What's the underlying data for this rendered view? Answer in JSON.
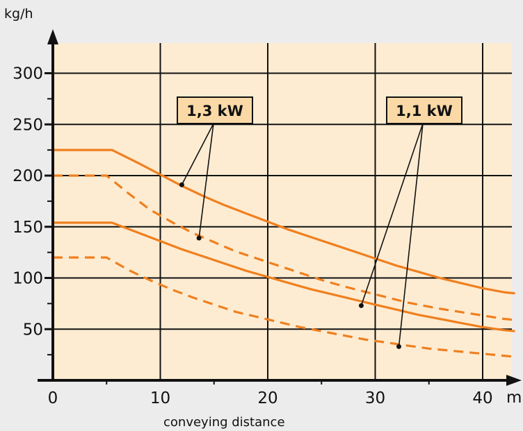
{
  "chart_data": {
    "type": "line",
    "title": "",
    "ylabel": "kg/h",
    "xunit": "m",
    "xlabel": "conveying distance",
    "xlim": [
      0,
      43
    ],
    "ylim": [
      0,
      310
    ],
    "xticks": [
      0,
      10,
      20,
      30,
      40
    ],
    "yticks": [
      50,
      100,
      150,
      200,
      250,
      300
    ],
    "grid": true,
    "colors": {
      "line": "#f07f1e",
      "plot_bg": "#fdecd2",
      "grid": "#111111",
      "callout_bg": "#fbd9a6"
    },
    "series": [
      {
        "style": "solid",
        "power": "1,3 kW",
        "x": [
          0,
          5.5,
          8,
          10,
          12,
          14,
          16,
          18,
          20,
          22,
          24,
          26,
          28,
          30,
          32,
          34,
          36,
          38,
          40,
          42,
          43
        ],
        "y": [
          225,
          225,
          212,
          201,
          190,
          180,
          171,
          163,
          155,
          147,
          140,
          133,
          126,
          119,
          112,
          106,
          100,
          95,
          90,
          86,
          85
        ]
      },
      {
        "style": "dashed",
        "power": "1,3 kW",
        "x": [
          0,
          5,
          7,
          9,
          11,
          13,
          15,
          17,
          19,
          21,
          23,
          25,
          27,
          30,
          33,
          36,
          39,
          42,
          43
        ],
        "y": [
          200,
          200,
          183,
          167,
          155,
          144,
          135,
          126,
          119,
          112,
          105,
          98,
          92,
          84,
          76,
          70,
          65,
          60,
          59
        ]
      },
      {
        "style": "solid",
        "power": "1,1 kW",
        "x": [
          0,
          5.5,
          8,
          10,
          12,
          14,
          16,
          18,
          20,
          22,
          24,
          26,
          28,
          30,
          32,
          34,
          36,
          38,
          40,
          42,
          43
        ],
        "y": [
          154,
          154,
          144,
          136,
          128,
          121,
          114,
          107,
          101,
          95,
          89,
          84,
          79,
          74,
          69,
          64,
          60,
          56,
          52,
          49,
          48
        ]
      },
      {
        "style": "dashed",
        "power": "1,1 kW",
        "x": [
          0,
          5,
          7,
          9,
          11,
          13,
          15,
          17,
          19,
          21,
          23,
          25,
          27,
          29,
          31,
          33,
          35,
          37,
          39,
          41,
          43
        ],
        "y": [
          120,
          120,
          108,
          98,
          89,
          81,
          74,
          67,
          62,
          57,
          52,
          48,
          44,
          40,
          37,
          34,
          31,
          29,
          27,
          25,
          23
        ]
      }
    ],
    "annotations": [
      {
        "text": "1,3 kW",
        "points": [
          {
            "x": 12,
            "y": 191
          },
          {
            "x": 13.6,
            "y": 139
          }
        ]
      },
      {
        "text": "1,1 kW",
        "points": [
          {
            "x": 28.7,
            "y": 73
          },
          {
            "x": 32.2,
            "y": 33
          }
        ]
      }
    ]
  }
}
